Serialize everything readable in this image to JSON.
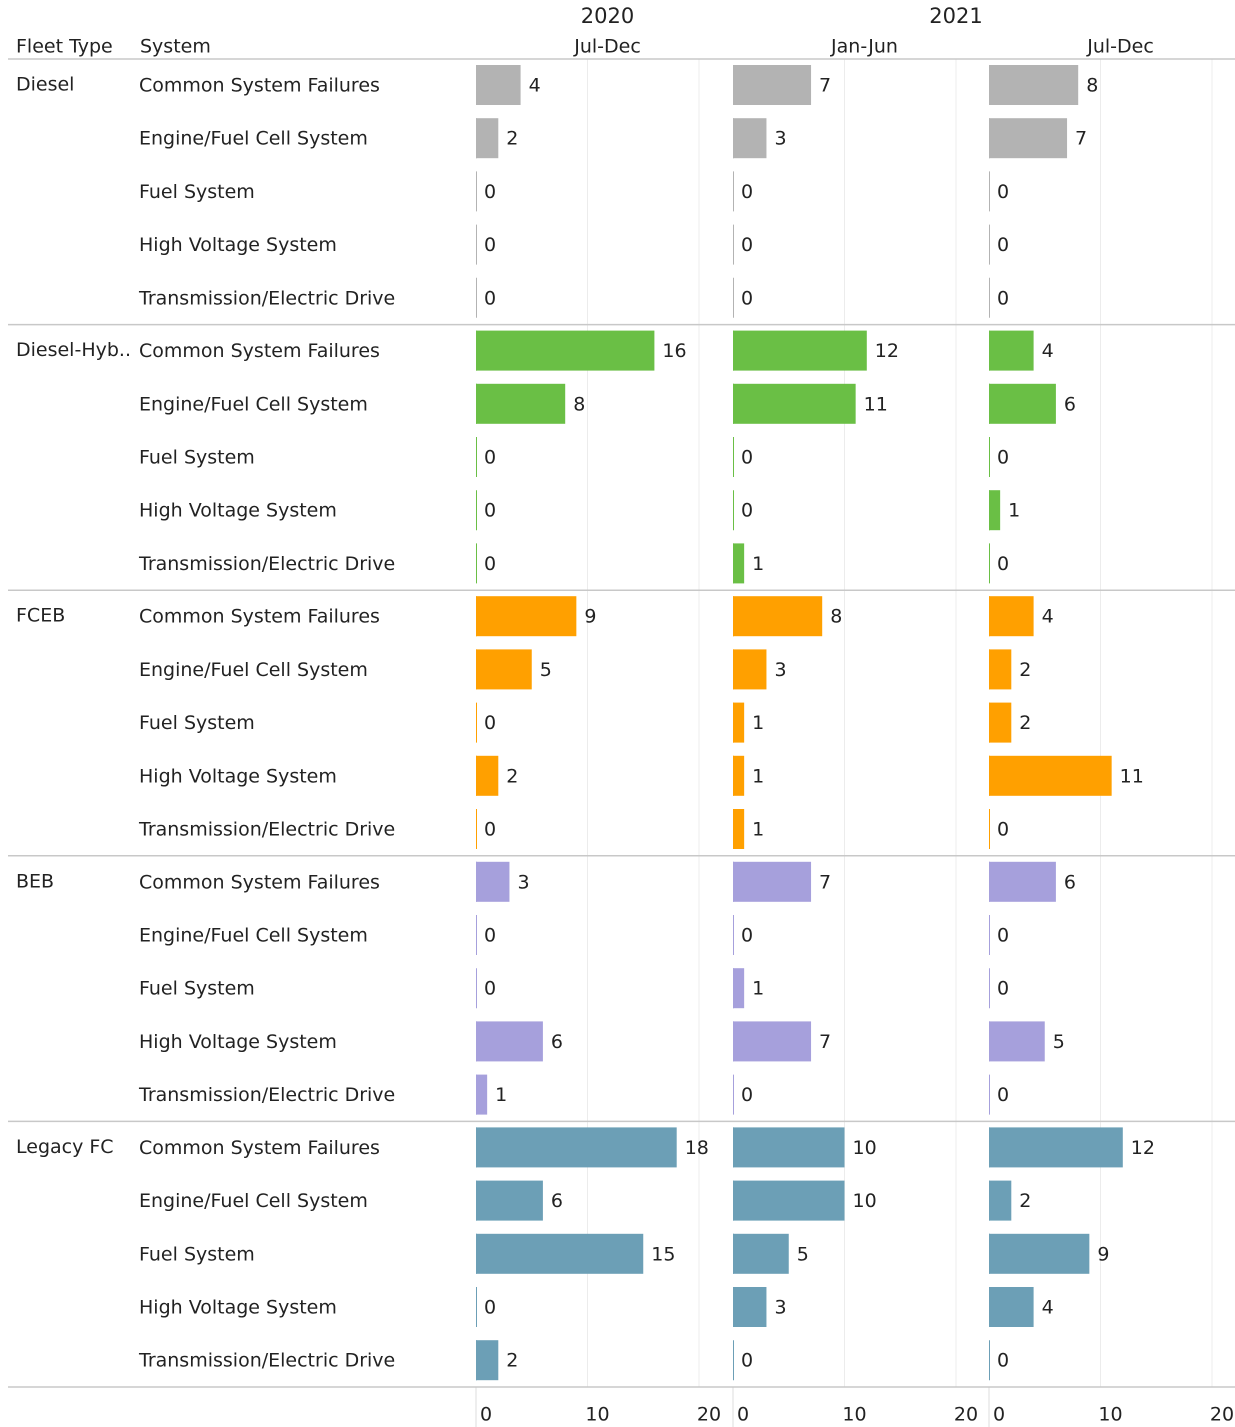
{
  "chart_data": {
    "type": "bar",
    "row_headers": [
      "Fleet Type",
      "System"
    ],
    "column_groups": [
      {
        "label": "2020",
        "periods": [
          "Jul-Dec"
        ]
      },
      {
        "label": "2021",
        "periods": [
          "Jan-Jun",
          "Jul-Dec"
        ]
      }
    ],
    "systems": [
      "Common System Failures",
      "Engine/Fuel Cell System",
      "Fuel System",
      "High Voltage System",
      "Transmission/Electric Drive"
    ],
    "fleets": [
      {
        "name": "Diesel",
        "color": "#b3b3b3",
        "values": [
          [
            4,
            2,
            0,
            0,
            0
          ],
          [
            7,
            3,
            0,
            0,
            0
          ],
          [
            8,
            7,
            0,
            0,
            0
          ]
        ]
      },
      {
        "name": "Diesel-Hyb..",
        "color": "#6abf45",
        "values": [
          [
            16,
            8,
            0,
            0,
            0
          ],
          [
            12,
            11,
            0,
            0,
            1
          ],
          [
            4,
            6,
            0,
            1,
            0
          ]
        ]
      },
      {
        "name": "FCEB",
        "color": "#ffa000",
        "values": [
          [
            9,
            5,
            0,
            2,
            0
          ],
          [
            8,
            3,
            1,
            1,
            1
          ],
          [
            4,
            2,
            2,
            11,
            0
          ]
        ]
      },
      {
        "name": "BEB",
        "color": "#a6a0dc",
        "values": [
          [
            3,
            0,
            0,
            6,
            1
          ],
          [
            7,
            0,
            1,
            7,
            0
          ],
          [
            6,
            0,
            0,
            5,
            0
          ]
        ]
      },
      {
        "name": "Legacy FC",
        "color": "#6c9fb6",
        "values": [
          [
            18,
            6,
            15,
            0,
            2
          ],
          [
            10,
            10,
            5,
            3,
            0
          ],
          [
            12,
            2,
            9,
            4,
            0
          ]
        ]
      }
    ],
    "xlim": [
      0,
      20
    ],
    "xticks": [
      0,
      10,
      20
    ],
    "grid": true
  }
}
